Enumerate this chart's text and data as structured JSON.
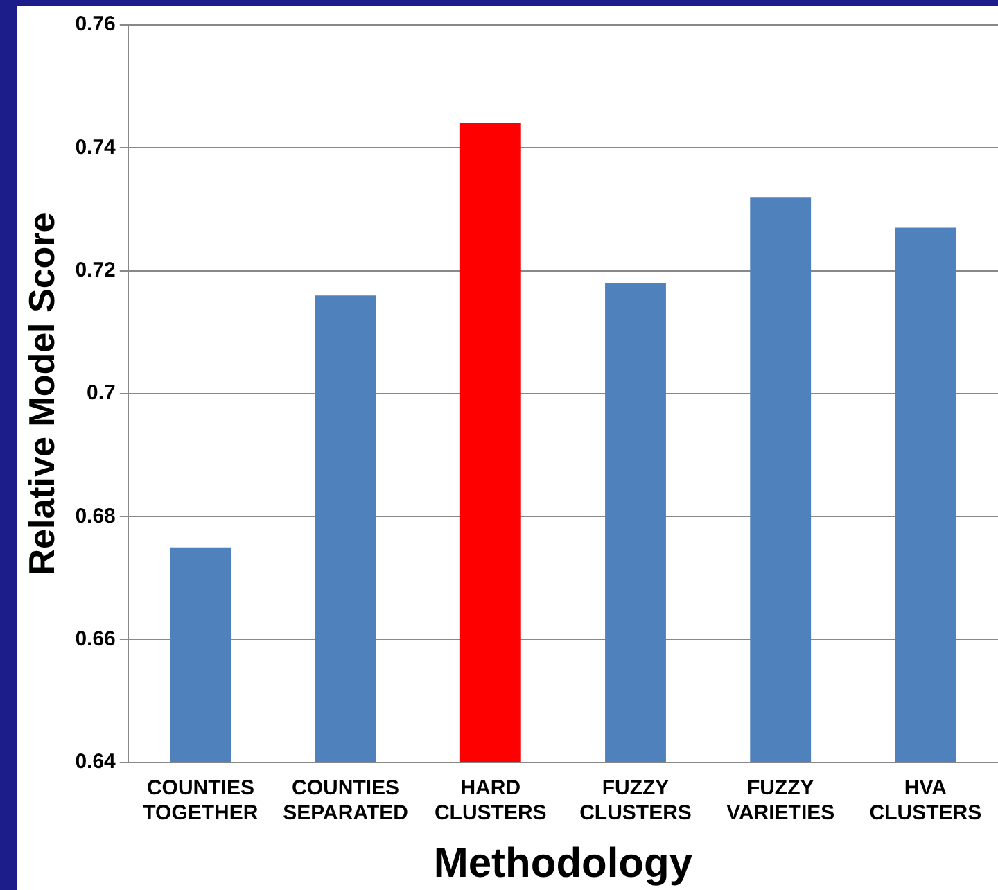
{
  "chart_data": {
    "type": "bar",
    "xlabel": "Methodology",
    "ylabel": "Relative Model Score",
    "categories": [
      "COUNTIES TOGETHER",
      "COUNTIES SEPARATED",
      "HARD CLUSTERS",
      "FUZZY CLUSTERS",
      "FUZZY VARIETIES",
      "HVA CLUSTERS"
    ],
    "values": [
      0.675,
      0.716,
      0.744,
      0.718,
      0.732,
      0.727
    ],
    "colors": [
      "#4f81bd",
      "#4f81bd",
      "#ff0000",
      "#4f81bd",
      "#4f81bd",
      "#4f81bd"
    ],
    "ylim": [
      0.64,
      0.76
    ],
    "yticks": [
      0.64,
      0.66,
      0.68,
      0.7,
      0.72,
      0.74,
      0.76
    ],
    "grid": "y",
    "legend": false
  }
}
